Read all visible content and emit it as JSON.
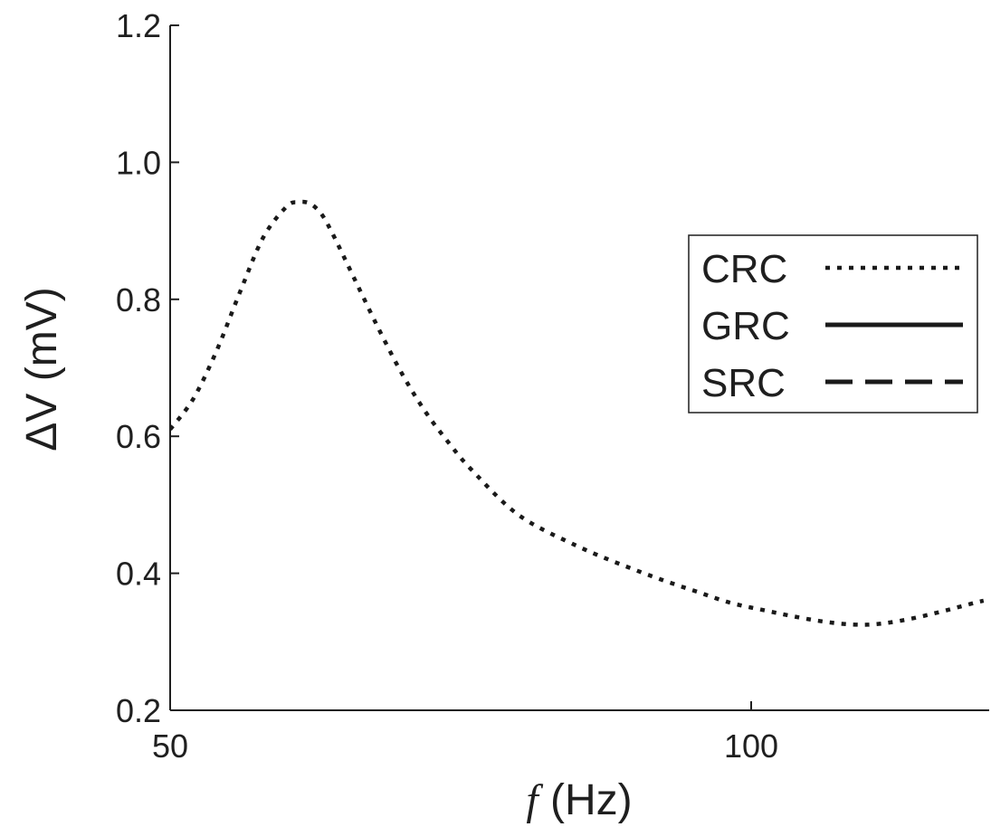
{
  "chart_data": {
    "type": "line",
    "xlabel_var": "f",
    "xlabel_unit": "(Hz)",
    "ylabel": "ΔV (mV)",
    "xlim": [
      50,
      120
    ],
    "ylim": [
      0.2,
      1.2
    ],
    "xticks": [
      50,
      100
    ],
    "xtick_labels": [
      "50",
      "100"
    ],
    "yticks": [
      0.2,
      0.4,
      0.6,
      0.8,
      1.0,
      1.2
    ],
    "ytick_labels": [
      "0.2",
      "0.4",
      "0.6",
      "0.8",
      "1.0",
      "1.2"
    ],
    "legend_position": "right",
    "grid": false,
    "series": [
      {
        "name": "CRC",
        "style": "dotted",
        "color": "#1a1a1a",
        "points": [
          [
            50,
            0.61
          ],
          [
            52,
            0.655
          ],
          [
            54,
            0.725
          ],
          [
            56,
            0.81
          ],
          [
            58,
            0.89
          ],
          [
            60,
            0.935
          ],
          [
            61,
            0.942
          ],
          [
            62,
            0.94
          ],
          [
            63,
            0.925
          ],
          [
            64,
            0.895
          ],
          [
            66,
            0.825
          ],
          [
            68,
            0.755
          ],
          [
            70,
            0.69
          ],
          [
            72,
            0.635
          ],
          [
            74,
            0.59
          ],
          [
            76,
            0.55
          ],
          [
            80,
            0.485
          ],
          [
            85,
            0.44
          ],
          [
            90,
            0.405
          ],
          [
            95,
            0.375
          ],
          [
            100,
            0.35
          ],
          [
            110,
            0.325
          ],
          [
            120,
            0.36
          ]
        ]
      },
      {
        "name": "GRC",
        "style": "solid",
        "color": "#1a1a1a",
        "points": []
      },
      {
        "name": "SRC",
        "style": "dashed",
        "color": "#1a1a1a",
        "points": []
      }
    ]
  }
}
